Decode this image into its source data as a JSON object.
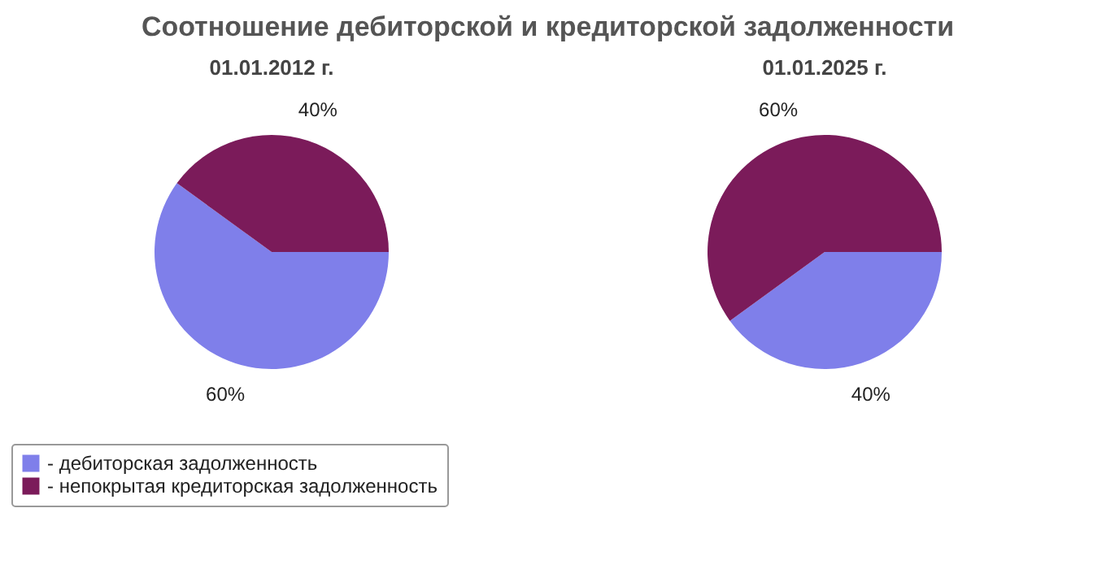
{
  "chart_data": [
    {
      "type": "pie",
      "title": "Соотношение дебиторской и кредиторской задолженности",
      "subtitle": "01.01.2012 г.",
      "categories": [
        "- дебиторская задолженность",
        "- непокрытая кредиторская задолженность"
      ],
      "values": [
        60,
        40
      ],
      "value_labels": [
        "60%",
        "40%"
      ],
      "colors": [
        "#7f7fea",
        "#7b1b5a"
      ],
      "legend": "bottom"
    },
    {
      "type": "pie",
      "subtitle": "01.01.2025 г.",
      "categories": [
        null,
        null
      ],
      "values": [
        40,
        60
      ],
      "value_labels": [
        "40%",
        "60%"
      ],
      "colors": [
        "#7f7fea",
        "#7b1b5a"
      ]
    }
  ]
}
